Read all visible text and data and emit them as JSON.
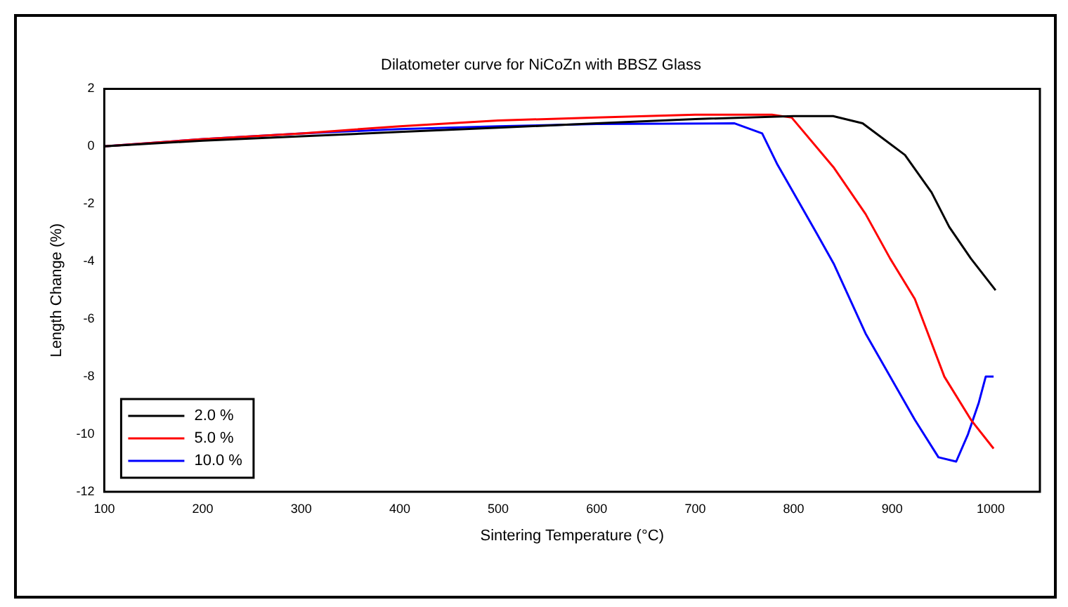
{
  "chart_data": {
    "type": "line",
    "title": "Dilatometer curve for NiCoZn with BBSZ Glass",
    "xlabel": "Sintering Temperature (°C)",
    "ylabel": "Length Change (%)",
    "xlim": [
      100,
      1050
    ],
    "xticks": [
      100,
      200,
      300,
      400,
      500,
      600,
      700,
      800,
      900,
      1000
    ],
    "ylim": [
      -12,
      2
    ],
    "yticks": [
      -12,
      -10,
      -8,
      -6,
      -4,
      -2,
      0,
      2
    ],
    "grid": false,
    "legend": "bottom left",
    "marker": "none",
    "line_style": "solid",
    "series": [
      {
        "name": "2.0 %",
        "color": "#000000",
        "x": [
          100,
          200,
          300,
          400,
          500,
          600,
          700,
          800,
          840,
          870,
          913,
          940,
          958,
          980,
          1005
        ],
        "values": [
          0,
          0.2,
          0.35,
          0.5,
          0.65,
          0.8,
          0.95,
          1.05,
          1.05,
          0.8,
          -0.3,
          -1.6,
          -2.8,
          -3.9,
          -5
        ]
      },
      {
        "name": "5.0 %",
        "color": "#ff0000",
        "x": [
          100,
          200,
          300,
          400,
          500,
          600,
          700,
          778,
          798,
          841,
          873,
          898,
          923,
          953,
          980,
          1003
        ],
        "values": [
          0,
          0.25,
          0.45,
          0.7,
          0.9,
          1.0,
          1.1,
          1.1,
          1.0,
          -0.75,
          -2.35,
          -3.9,
          -5.3,
          -8.0,
          -9.5,
          -10.5
        ]
      },
      {
        "name": "10.0 %",
        "color": "#0000ff",
        "x": [
          100,
          200,
          300,
          400,
          500,
          600,
          740,
          768,
          783,
          823,
          841,
          873,
          923,
          947,
          965,
          977,
          988,
          995,
          1003
        ],
        "values": [
          0,
          0.25,
          0.45,
          0.6,
          0.7,
          0.78,
          0.8,
          0.45,
          -0.6,
          -3.0,
          -4.1,
          -6.5,
          -9.5,
          -10.8,
          -10.95,
          -10.0,
          -8.9,
          -8.0,
          -8.0
        ]
      }
    ]
  }
}
